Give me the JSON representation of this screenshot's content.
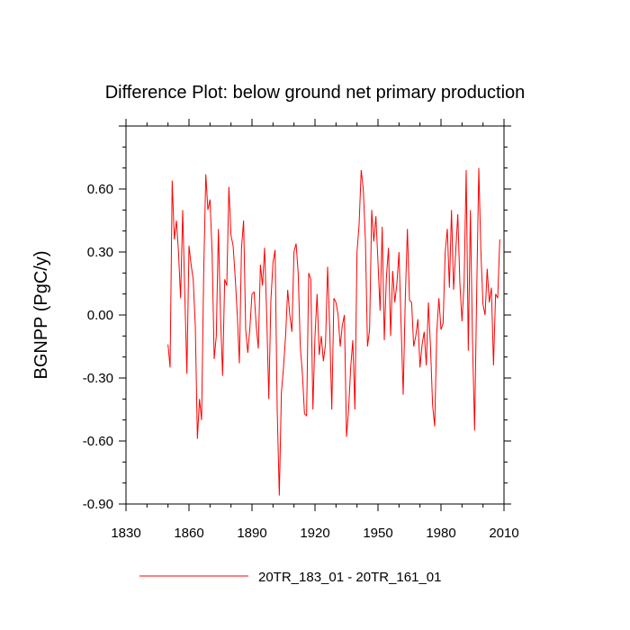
{
  "chart_data": {
    "type": "line",
    "title": "Difference Plot: below ground net primary production",
    "xlabel": "",
    "ylabel": "BGNPP  (PgC/y)",
    "xlim": [
      1830,
      2010
    ],
    "ylim": [
      -0.9,
      0.9
    ],
    "x_ticks": [
      "1830",
      "1860",
      "1890",
      "1920",
      "1950",
      "1980",
      "2010"
    ],
    "y_ticks": [
      "0.60",
      "0.30",
      "0.00",
      "-0.30",
      "-0.60",
      "-0.90"
    ],
    "legend_position": "bottom-center",
    "series": [
      {
        "name": "20TR_183_01 - 20TR_161_01",
        "color": "#ff0000",
        "x_start": 1850,
        "x_step": 1,
        "values": [
          -0.14,
          -0.25,
          0.64,
          0.36,
          0.45,
          0.3,
          0.08,
          0.5,
          0.1,
          -0.28,
          0.33,
          0.24,
          0.17,
          -0.05,
          -0.59,
          -0.4,
          -0.5,
          0.2,
          0.67,
          0.5,
          0.55,
          0.3,
          -0.21,
          -0.1,
          0.41,
          0.0,
          -0.29,
          0.17,
          0.14,
          0.61,
          0.38,
          0.33,
          0.18,
          0.0,
          -0.23,
          0.32,
          0.45,
          -0.07,
          -0.18,
          -0.06,
          0.1,
          0.11,
          -0.05,
          -0.16,
          0.24,
          0.14,
          0.32,
          0.0,
          -0.4,
          0.07,
          0.25,
          0.31,
          -0.45,
          -0.86,
          -0.37,
          -0.25,
          -0.1,
          0.12,
          0.0,
          -0.08,
          0.3,
          0.34,
          0.2,
          -0.15,
          -0.28,
          -0.47,
          -0.48,
          0.2,
          0.17,
          -0.45,
          -0.1,
          0.1,
          -0.19,
          -0.1,
          -0.22,
          -0.14,
          0.23,
          -0.06,
          -0.45,
          0.08,
          0.06,
          0.0,
          -0.15,
          -0.05,
          0.0,
          -0.58,
          -0.45,
          -0.25,
          -0.12,
          -0.45,
          0.3,
          0.43,
          0.69,
          0.6,
          0.36,
          -0.15,
          -0.07,
          0.5,
          0.35,
          0.47,
          0.25,
          0.02,
          0.42,
          -0.12,
          0.18,
          0.32,
          -0.1,
          0.21,
          0.06,
          0.15,
          0.3,
          -0.05,
          -0.38,
          0.08,
          0.41,
          0.07,
          0.06,
          -0.15,
          -0.1,
          -0.02,
          -0.25,
          -0.14,
          -0.08,
          -0.24,
          0.06,
          -0.15,
          -0.43,
          -0.53,
          -0.08,
          0.08,
          -0.07,
          -0.04,
          0.3,
          0.41,
          0.13,
          0.5,
          0.12,
          0.3,
          0.48,
          0.15,
          -0.03,
          0.15,
          0.69,
          -0.17,
          0.5,
          -0.12,
          -0.55,
          0.11,
          0.7,
          0.3,
          0.05,
          0.0,
          0.22,
          0.06,
          0.13,
          -0.24,
          0.1,
          0.08,
          0.36
        ]
      }
    ]
  }
}
